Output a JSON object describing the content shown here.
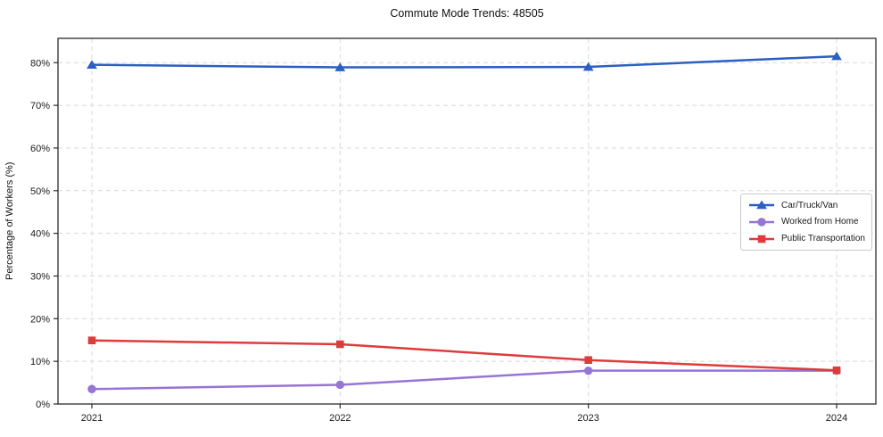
{
  "chart_data": {
    "type": "line",
    "title": "Commute Mode Trends: 48505",
    "xlabel": "",
    "ylabel": "Percentage of Workers (%)",
    "x_tick_labels": [
      "2021",
      "2022",
      "2023",
      "2024"
    ],
    "y_ticks": [
      0,
      10,
      20,
      30,
      40,
      50,
      60,
      70,
      80
    ],
    "y_tick_suffix": "%",
    "ylim": [
      0,
      85.7
    ],
    "grid": true,
    "grid_style": "dashed",
    "legend_position": "center-right",
    "series": [
      {
        "name": "Car/Truck/Van",
        "color": "#2b5fc3",
        "marker": "triangle",
        "values": [
          79.5,
          78.9,
          79.0,
          81.5
        ]
      },
      {
        "name": "Worked from Home",
        "color": "#9675d6",
        "marker": "circle",
        "values": [
          3.5,
          4.5,
          7.8,
          7.8
        ]
      },
      {
        "name": "Public Transportation",
        "color": "#dd3c3c",
        "marker": "square",
        "values": [
          14.9,
          14.0,
          10.3,
          7.9
        ]
      }
    ],
    "colors": {
      "grid": "#d9d9d9",
      "spine": "#2b2b2b",
      "tick_text": "#1a1a1a",
      "background": "#ffffff"
    }
  }
}
